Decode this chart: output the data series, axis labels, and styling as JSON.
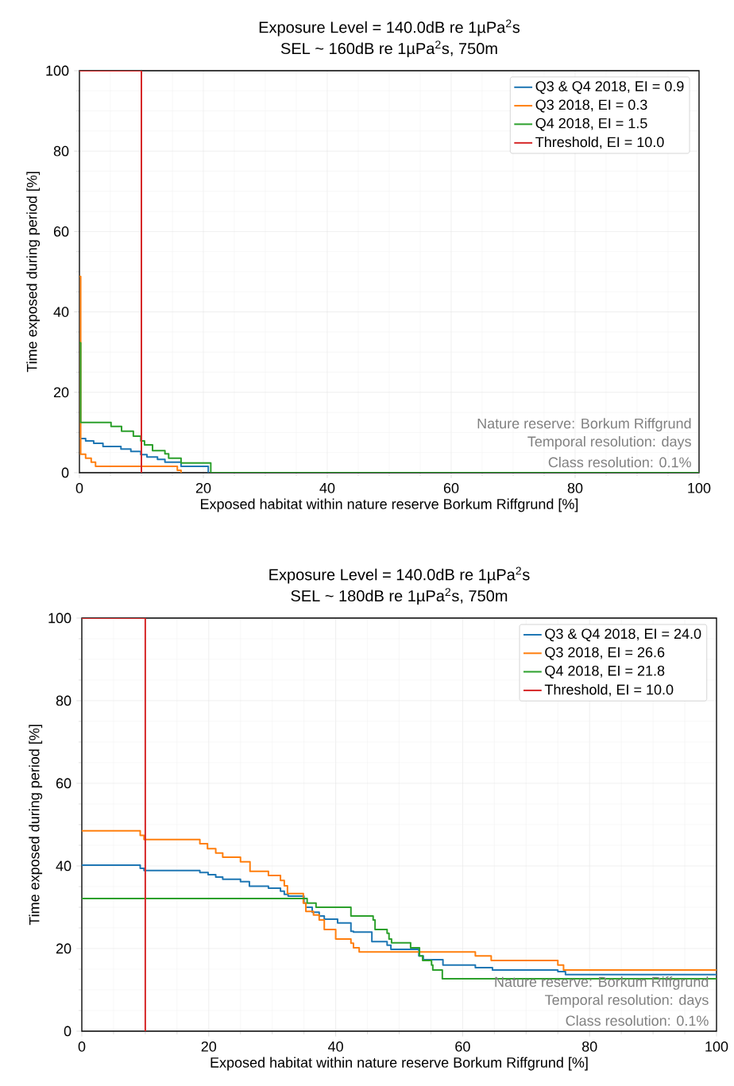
{
  "chart_data": [
    {
      "type": "step",
      "title": "Exposure Level = 140.0dB re 1µPa$^{2}$s",
      "subtitle": "SEL ~ 160dB re 1µPa$^{2}$s, 750m",
      "xlabel": "Exposed habitat within nature reserve Borkum Riffgrund [%]",
      "ylabel": "Time exposed during period [%]",
      "xlim": [
        0,
        100
      ],
      "ylim": [
        0,
        100
      ],
      "xticks": [
        0,
        20,
        40,
        60,
        80,
        100
      ],
      "yticks": [
        0,
        20,
        40,
        60,
        80,
        100
      ],
      "grid": true,
      "legend": "top right",
      "annotations": [
        "Nature reserve: Borkum Riffgrund",
        "Temporal resolution: days",
        "Class resolution: 0.1%"
      ],
      "series": [
        {
          "name": "Q3 & Q4 2018, EI = 0.9",
          "color": "#1f77b4",
          "x": [
            0,
            1.0,
            2.3,
            3.8,
            6.7,
            8.3,
            9.9,
            10.9,
            12.6,
            13.8,
            16.4,
            20.8
          ],
          "values": [
            8.5,
            7.9,
            7.3,
            6.5,
            5.9,
            5.3,
            4.5,
            3.9,
            3.3,
            2.6,
            1.6,
            0
          ]
        },
        {
          "name": "Q3 2018, EI = 0.3",
          "color": "#ff7f0e",
          "x": [
            0,
            0.2,
            1.0,
            1.9,
            2.6,
            15.8,
            16.4
          ],
          "values": [
            48.8,
            4.6,
            3.6,
            2.6,
            1.6,
            0.6,
            0
          ]
        },
        {
          "name": "Q4 2018, EI = 1.5",
          "color": "#2ca02c",
          "x": [
            0,
            0.2,
            5.1,
            6.8,
            8.7,
            9.9,
            10.5,
            11.8,
            13.8,
            14.4,
            16.4,
            21.2,
            100
          ],
          "values": [
            32.3,
            12.5,
            11.5,
            10.3,
            9.1,
            7.9,
            6.9,
            5.5,
            4.7,
            3.6,
            2.4,
            0,
            0
          ]
        },
        {
          "name": "Threshold, EI = 10.0",
          "color": "#d62728",
          "type": "line",
          "x": [
            0,
            10,
            10
          ],
          "values": [
            100,
            100,
            0
          ]
        }
      ]
    },
    {
      "type": "step",
      "title": "Exposure Level = 140.0dB re 1µPa$^{2}$s",
      "subtitle": "SEL ~ 180dB re 1µPa$^{2}$s, 750m",
      "xlabel": "Exposed habitat within nature reserve Borkum Riffgrund [%]",
      "ylabel": "Time exposed during period [%]",
      "xlim": [
        0,
        100
      ],
      "ylim": [
        0,
        100
      ],
      "xticks": [
        0,
        20,
        40,
        60,
        80,
        100
      ],
      "yticks": [
        0,
        20,
        40,
        60,
        80,
        100
      ],
      "grid": true,
      "legend": "top right",
      "annotations": [
        "Nature reserve: Borkum Riffgrund",
        "Temporal resolution: days",
        "Class resolution: 0.1%"
      ],
      "series": [
        {
          "name": "Q3 & Q4 2018, EI = 24.0",
          "color": "#1f77b4",
          "x": [
            0,
            9.2,
            9.8,
            18.6,
            19.9,
            21.1,
            22.2,
            25.0,
            26.4,
            29.4,
            31.3,
            31.9,
            32.5,
            35.0,
            35.3,
            36.3,
            37.4,
            38.2,
            40.3,
            42.4,
            42.8,
            45.7,
            48.1,
            48.7,
            53.1,
            53.8,
            56.9,
            62.0,
            64.7,
            75.0,
            76.2,
            100
          ],
          "values": [
            40.2,
            39.4,
            38.9,
            38.4,
            37.9,
            37.3,
            36.8,
            36.2,
            35.1,
            34.6,
            33.9,
            33.1,
            32.7,
            31.0,
            30.0,
            28.8,
            27.9,
            27.1,
            26.2,
            24.2,
            24.0,
            21.7,
            20.8,
            19.8,
            18.2,
            17.3,
            16.0,
            15.4,
            14.8,
            14.4,
            13.7,
            13.7
          ]
        },
        {
          "name": "Q3 2018, EI = 26.6",
          "color": "#ff7f0e",
          "x": [
            0,
            9.2,
            9.8,
            18.6,
            19.8,
            21.1,
            22.2,
            25.0,
            26.5,
            29.4,
            31.3,
            31.9,
            32.4,
            34.9,
            35.3,
            36.5,
            37.4,
            38.2,
            40.0,
            42.4,
            42.8,
            43.7,
            62.0,
            64.5,
            75.0,
            75.9,
            100
          ],
          "values": [
            48.5,
            47.4,
            46.4,
            45.4,
            44.2,
            43.1,
            42.1,
            41.0,
            38.7,
            37.7,
            36.5,
            35.2,
            33.3,
            31.0,
            29.0,
            28.1,
            26.9,
            24.6,
            22.3,
            21.3,
            20.2,
            19.2,
            18.2,
            17.1,
            16.0,
            14.8,
            14.8
          ]
        },
        {
          "name": "Q4 2018, EI = 21.8",
          "color": "#2ca02c",
          "x": [
            0,
            35.5,
            36.9,
            42.4,
            45.9,
            46.2,
            48.1,
            48.4,
            48.8,
            51.8,
            53.2,
            53.7,
            55.1,
            55.3,
            56.8,
            100
          ],
          "values": [
            32.1,
            31.0,
            30.0,
            27.9,
            26.9,
            24.6,
            23.7,
            22.3,
            21.4,
            20.2,
            18.2,
            17.1,
            16.0,
            14.8,
            12.7,
            12.7
          ]
        },
        {
          "name": "Threshold, EI = 10.0",
          "color": "#d62728",
          "type": "line",
          "x": [
            0,
            10,
            10
          ],
          "values": [
            100,
            100,
            0
          ]
        }
      ]
    }
  ]
}
